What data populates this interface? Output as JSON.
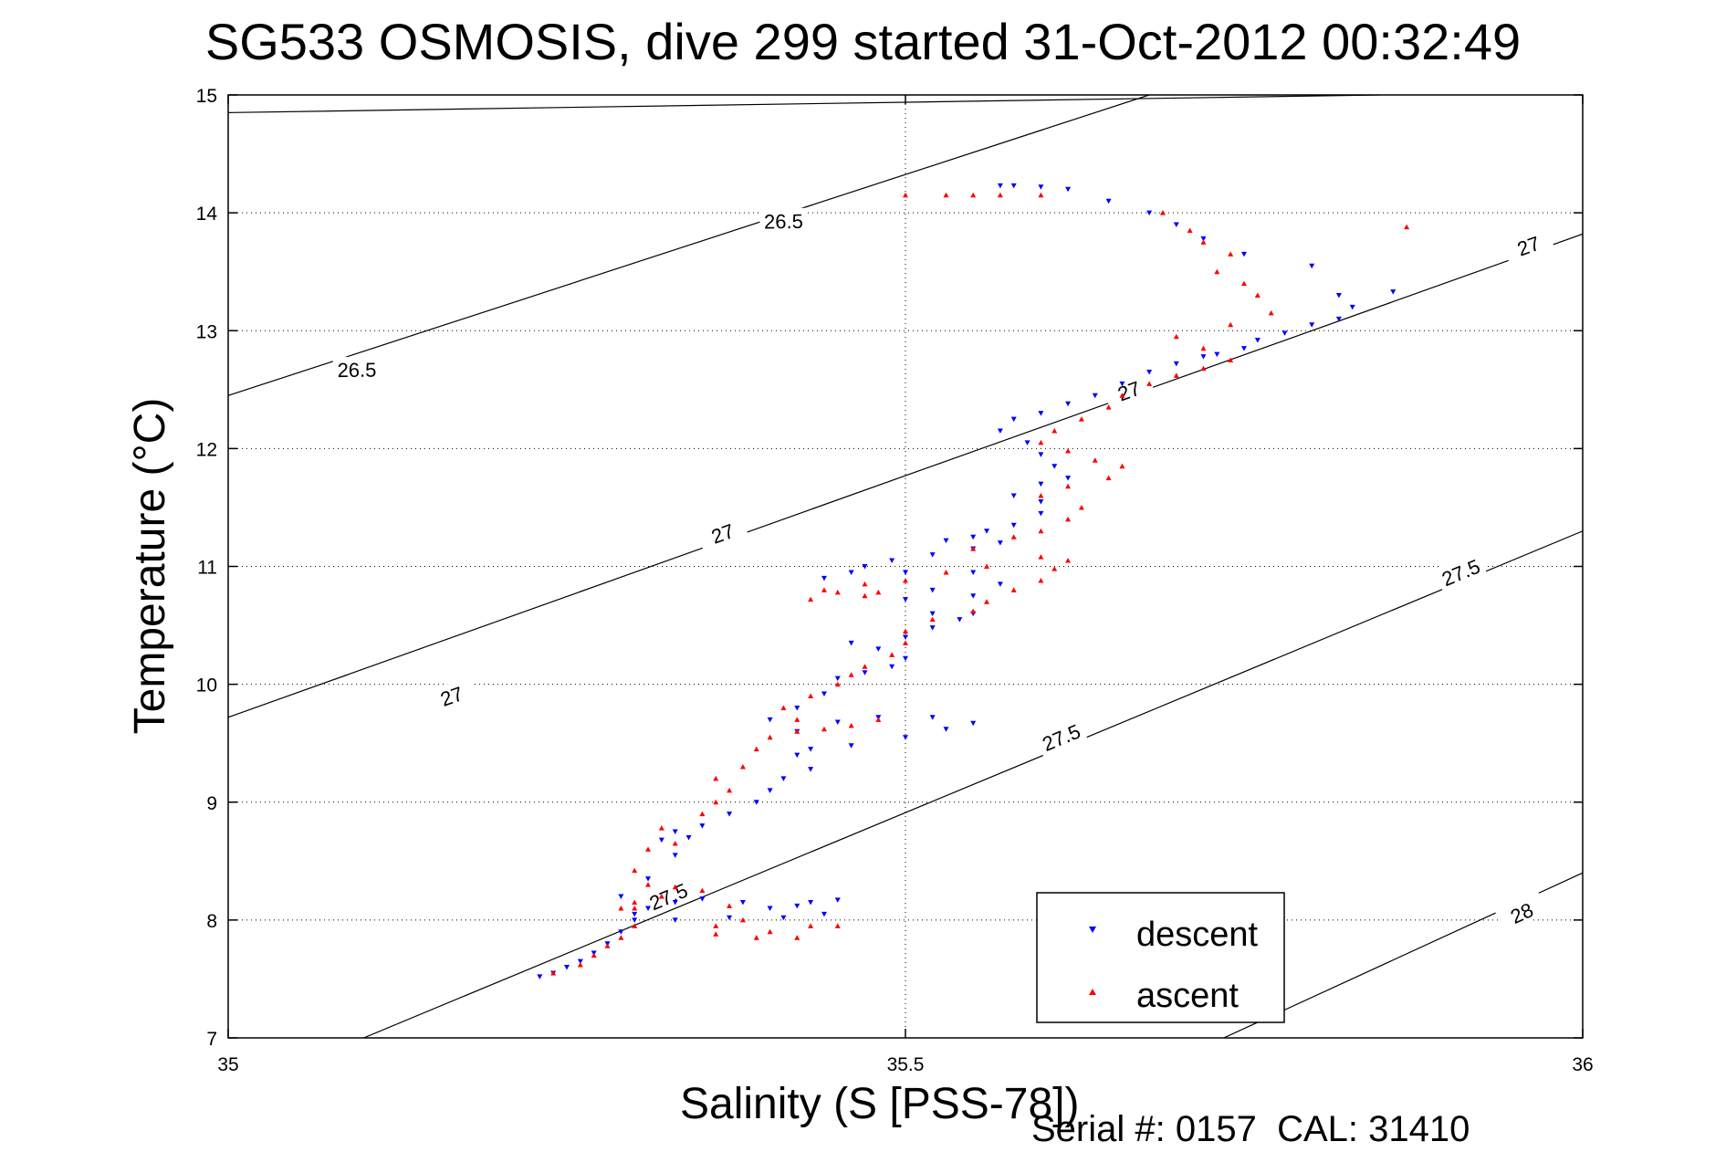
{
  "chart_data": {
    "type": "scatter",
    "title": "SG533 OSMOSIS, dive 299 started 31-Oct-2012 00:32:49",
    "xlabel": "Salinity (S [PSS-78])",
    "ylabel": "Temperature (°C)",
    "footer": "Serial #: 0157  CAL: 31410",
    "xlim": [
      35,
      36
    ],
    "ylim": [
      7,
      15
    ],
    "x_ticks": [
      35,
      35.5,
      36
    ],
    "x_tick_labels": [
      "35",
      "35.5",
      "36"
    ],
    "y_ticks": [
      7,
      8,
      9,
      10,
      11,
      12,
      13,
      14,
      15
    ],
    "y_tick_labels": [
      "7",
      "8",
      "9",
      "10",
      "11",
      "12",
      "13",
      "14",
      "15"
    ],
    "grid": true,
    "legend_position": "bottom-right",
    "density_contours": [
      {
        "label": "26.5",
        "points": [
          [
            35.0,
            14.85
          ],
          [
            35.85,
            15.0
          ]
        ],
        "label_positions": [
          [
            35.41,
            13.93
          ],
          [
            35.095,
            12.67
          ]
        ]
      },
      {
        "label": "26.5",
        "points": [
          [
            35.0,
            12.45
          ],
          [
            35.68,
            15.0
          ]
        ]
      },
      {
        "label": "27",
        "points": [
          [
            35.0,
            9.72
          ],
          [
            36.0,
            13.82
          ]
        ],
        "label_positions": [
          [
            35.165,
            9.9
          ],
          [
            35.365,
            11.28
          ],
          [
            35.665,
            12.49
          ],
          [
            35.96,
            13.72
          ]
        ]
      },
      {
        "label": "27.5",
        "points": [
          [
            35.1,
            7.0
          ],
          [
            36.0,
            11.3
          ]
        ],
        "label_positions": [
          [
            35.325,
            8.2
          ],
          [
            35.615,
            9.55
          ],
          [
            35.91,
            10.95
          ]
        ]
      },
      {
        "label": "28",
        "points": [
          [
            35.735,
            7.0
          ],
          [
            36.0,
            8.4
          ]
        ],
        "label_positions": [
          [
            35.955,
            8.06
          ]
        ]
      }
    ],
    "series": [
      {
        "name": "descent",
        "color": "#0000ff",
        "marker": "triangle-down",
        "points": [
          [
            35.23,
            7.52
          ],
          [
            35.24,
            7.55
          ],
          [
            35.25,
            7.6
          ],
          [
            35.26,
            7.65
          ],
          [
            35.27,
            7.72
          ],
          [
            35.28,
            7.8
          ],
          [
            35.29,
            7.9
          ],
          [
            35.3,
            8.0
          ],
          [
            35.31,
            8.1
          ],
          [
            35.33,
            8.15
          ],
          [
            35.35,
            8.18
          ],
          [
            35.38,
            8.15
          ],
          [
            35.4,
            8.1
          ],
          [
            35.42,
            8.12
          ],
          [
            35.43,
            8.15
          ],
          [
            35.45,
            8.17
          ],
          [
            35.44,
            8.05
          ],
          [
            35.41,
            8.02
          ],
          [
            35.37,
            8.02
          ],
          [
            35.33,
            8.0
          ],
          [
            35.3,
            8.05
          ],
          [
            35.29,
            8.2
          ],
          [
            35.31,
            8.35
          ],
          [
            35.33,
            8.55
          ],
          [
            35.34,
            8.7
          ],
          [
            35.33,
            8.75
          ],
          [
            35.32,
            8.68
          ],
          [
            35.35,
            8.8
          ],
          [
            35.37,
            8.9
          ],
          [
            35.39,
            9.0
          ],
          [
            35.4,
            9.1
          ],
          [
            35.41,
            9.2
          ],
          [
            35.43,
            9.28
          ],
          [
            35.42,
            9.4
          ],
          [
            35.43,
            9.45
          ],
          [
            35.46,
            9.48
          ],
          [
            35.5,
            9.55
          ],
          [
            35.53,
            9.62
          ],
          [
            35.55,
            9.67
          ],
          [
            35.52,
            9.72
          ],
          [
            35.48,
            9.72
          ],
          [
            35.45,
            9.68
          ],
          [
            35.42,
            9.6
          ],
          [
            35.4,
            9.7
          ],
          [
            35.42,
            9.8
          ],
          [
            35.44,
            9.92
          ],
          [
            35.45,
            10.05
          ],
          [
            35.47,
            10.1
          ],
          [
            35.49,
            10.15
          ],
          [
            35.5,
            10.22
          ],
          [
            35.48,
            10.3
          ],
          [
            35.46,
            10.35
          ],
          [
            35.5,
            10.4
          ],
          [
            35.52,
            10.48
          ],
          [
            35.54,
            10.55
          ],
          [
            35.55,
            10.6
          ],
          [
            35.52,
            10.6
          ],
          [
            35.5,
            10.72
          ],
          [
            35.52,
            10.8
          ],
          [
            35.55,
            10.75
          ],
          [
            35.57,
            10.85
          ],
          [
            35.55,
            10.95
          ],
          [
            35.5,
            10.95
          ],
          [
            35.46,
            10.95
          ],
          [
            35.44,
            10.9
          ],
          [
            35.47,
            11.0
          ],
          [
            35.49,
            11.05
          ],
          [
            35.52,
            11.1
          ],
          [
            35.55,
            11.15
          ],
          [
            35.57,
            11.2
          ],
          [
            35.55,
            11.25
          ],
          [
            35.53,
            11.22
          ],
          [
            35.56,
            11.3
          ],
          [
            35.58,
            11.35
          ],
          [
            35.6,
            11.45
          ],
          [
            35.6,
            11.55
          ],
          [
            35.58,
            11.6
          ],
          [
            35.6,
            11.7
          ],
          [
            35.62,
            11.75
          ],
          [
            35.61,
            11.85
          ],
          [
            35.6,
            11.95
          ],
          [
            35.59,
            12.05
          ],
          [
            35.57,
            12.15
          ],
          [
            35.58,
            12.25
          ],
          [
            35.6,
            12.3
          ],
          [
            35.62,
            12.38
          ],
          [
            35.64,
            12.45
          ],
          [
            35.66,
            12.55
          ],
          [
            35.68,
            12.65
          ],
          [
            35.7,
            12.72
          ],
          [
            35.72,
            12.78
          ],
          [
            35.73,
            12.8
          ],
          [
            35.75,
            12.85
          ],
          [
            35.76,
            12.92
          ],
          [
            35.78,
            12.98
          ],
          [
            35.8,
            13.05
          ],
          [
            35.82,
            13.1
          ],
          [
            35.83,
            13.2
          ],
          [
            35.82,
            13.3
          ],
          [
            35.86,
            13.33
          ],
          [
            35.8,
            13.55
          ],
          [
            35.75,
            13.65
          ],
          [
            35.72,
            13.78
          ],
          [
            35.7,
            13.9
          ],
          [
            35.68,
            14.0
          ],
          [
            35.65,
            14.1
          ],
          [
            35.62,
            14.2
          ],
          [
            35.6,
            14.22
          ],
          [
            35.58,
            14.23
          ],
          [
            35.57,
            14.23
          ]
        ]
      },
      {
        "name": "ascent",
        "color": "#ff0000",
        "marker": "triangle-up",
        "points": [
          [
            35.24,
            7.55
          ],
          [
            35.26,
            7.62
          ],
          [
            35.27,
            7.7
          ],
          [
            35.28,
            7.78
          ],
          [
            35.29,
            7.85
          ],
          [
            35.3,
            7.95
          ],
          [
            35.29,
            8.1
          ],
          [
            35.3,
            8.15
          ],
          [
            35.32,
            8.2
          ],
          [
            35.33,
            8.28
          ],
          [
            35.35,
            8.25
          ],
          [
            35.37,
            8.12
          ],
          [
            35.38,
            8.0
          ],
          [
            35.36,
            7.95
          ],
          [
            35.36,
            7.88
          ],
          [
            35.4,
            7.9
          ],
          [
            35.43,
            7.95
          ],
          [
            35.45,
            7.95
          ],
          [
            35.42,
            7.85
          ],
          [
            35.39,
            7.85
          ],
          [
            35.3,
            8.1
          ],
          [
            35.31,
            8.3
          ],
          [
            35.3,
            8.42
          ],
          [
            35.31,
            8.6
          ],
          [
            35.33,
            8.65
          ],
          [
            35.32,
            8.78
          ],
          [
            35.35,
            8.9
          ],
          [
            35.36,
            9.0
          ],
          [
            35.37,
            9.1
          ],
          [
            35.36,
            9.2
          ],
          [
            35.38,
            9.3
          ],
          [
            35.39,
            9.45
          ],
          [
            35.4,
            9.55
          ],
          [
            35.42,
            9.6
          ],
          [
            35.44,
            9.62
          ],
          [
            35.46,
            9.65
          ],
          [
            35.48,
            9.7
          ],
          [
            35.42,
            9.7
          ],
          [
            35.41,
            9.8
          ],
          [
            35.43,
            9.9
          ],
          [
            35.45,
            10.0
          ],
          [
            35.46,
            10.08
          ],
          [
            35.47,
            10.15
          ],
          [
            35.49,
            10.25
          ],
          [
            35.5,
            10.35
          ],
          [
            35.5,
            10.45
          ],
          [
            35.52,
            10.55
          ],
          [
            35.55,
            10.62
          ],
          [
            35.56,
            10.7
          ],
          [
            35.58,
            10.8
          ],
          [
            35.6,
            10.88
          ],
          [
            35.61,
            10.98
          ],
          [
            35.62,
            11.05
          ],
          [
            35.6,
            11.08
          ],
          [
            35.56,
            11.0
          ],
          [
            35.53,
            10.95
          ],
          [
            35.5,
            10.88
          ],
          [
            35.47,
            10.85
          ],
          [
            35.44,
            10.8
          ],
          [
            35.43,
            10.72
          ],
          [
            35.45,
            10.78
          ],
          [
            35.47,
            10.75
          ],
          [
            35.48,
            10.78
          ],
          [
            35.55,
            11.15
          ],
          [
            35.58,
            11.25
          ],
          [
            35.6,
            11.3
          ],
          [
            35.62,
            11.4
          ],
          [
            35.63,
            11.5
          ],
          [
            35.6,
            11.6
          ],
          [
            35.62,
            11.68
          ],
          [
            35.65,
            11.75
          ],
          [
            35.66,
            11.85
          ],
          [
            35.64,
            11.9
          ],
          [
            35.62,
            11.98
          ],
          [
            35.6,
            12.05
          ],
          [
            35.61,
            12.15
          ],
          [
            35.63,
            12.25
          ],
          [
            35.65,
            12.35
          ],
          [
            35.66,
            12.45
          ],
          [
            35.68,
            12.55
          ],
          [
            35.7,
            12.62
          ],
          [
            35.72,
            12.68
          ],
          [
            35.74,
            12.75
          ],
          [
            35.72,
            12.85
          ],
          [
            35.7,
            12.95
          ],
          [
            35.74,
            13.05
          ],
          [
            35.77,
            13.15
          ],
          [
            35.76,
            13.3
          ],
          [
            35.75,
            13.4
          ],
          [
            35.73,
            13.5
          ],
          [
            35.74,
            13.65
          ],
          [
            35.72,
            13.75
          ],
          [
            35.71,
            13.85
          ],
          [
            35.69,
            14.0
          ],
          [
            35.6,
            14.15
          ],
          [
            35.57,
            14.15
          ],
          [
            35.55,
            14.15
          ],
          [
            35.53,
            14.15
          ],
          [
            35.5,
            14.15
          ],
          [
            35.87,
            13.88
          ]
        ]
      }
    ]
  }
}
